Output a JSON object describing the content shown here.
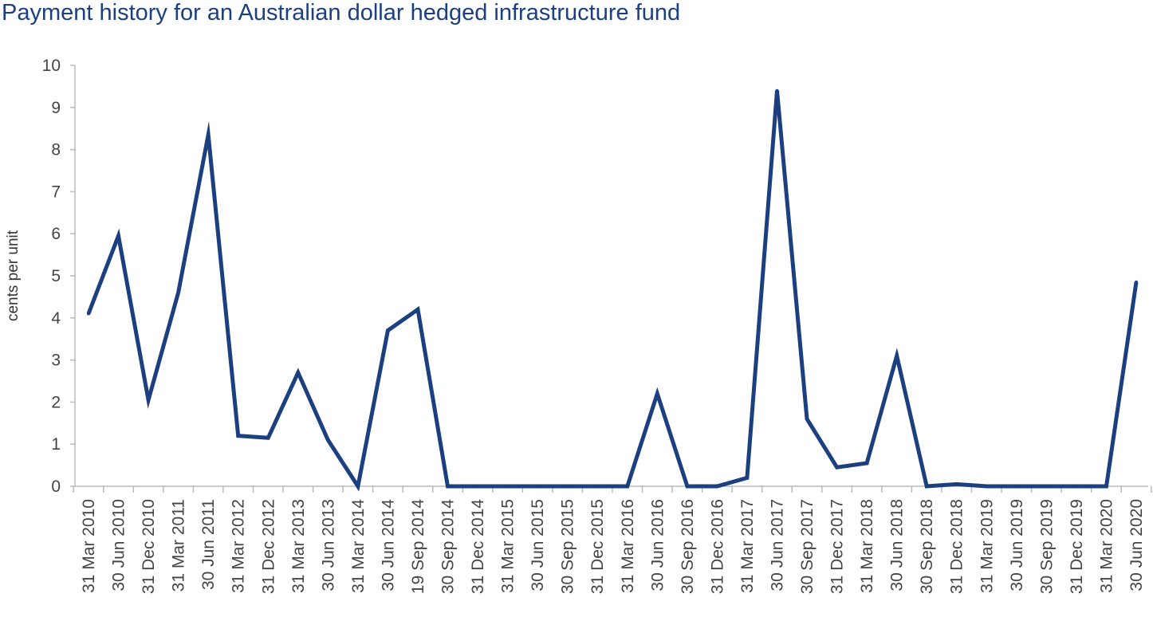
{
  "chart_data": {
    "type": "line",
    "title": "Payment history for an Australian dollar hedged infrastructure fund",
    "xlabel": "",
    "ylabel": "cents per unit",
    "ylim": [
      0,
      10
    ],
    "yticks": [
      "0",
      "1",
      "2",
      "3",
      "4",
      "5",
      "6",
      "7",
      "8",
      "9",
      "10"
    ],
    "grid": false,
    "line_color": "#1b3f7f",
    "categories": [
      "31 Mar 2010",
      "30 Jun 2010",
      "31 Dec 2010",
      "31 Mar 2011",
      "30 Jun 2011",
      "31 Mar 2012",
      "31 Dec 2012",
      "31 Mar 2013",
      "30 Jun 2013",
      "31 Mar 2014",
      "30 Jun 2014",
      "19 Sep 2014",
      "30 Sep 2014",
      "31 Dec 2014",
      "31 Mar 2015",
      "30 Jun 2015",
      "30 Sep 2015",
      "31 Dec 2015",
      "31 Mar 2016",
      "30 Jun 2016",
      "30 Sep 2016",
      "31 Dec 2016",
      "31 Mar 2017",
      "30 Jun 2017",
      "30 Sep 2017",
      "31 Dec 2017",
      "31 Mar 2018",
      "30 Jun 2018",
      "30 Sep 2018",
      "31 Dec 2018",
      "31 Mar 2019",
      "30 Jun 2019",
      "30 Sep 2019",
      "31 Dec 2019",
      "31 Mar 2020",
      "30 Jun 2020"
    ],
    "series": [
      {
        "values": [
          4.1,
          5.95,
          2.05,
          4.6,
          8.35,
          1.2,
          1.15,
          2.7,
          1.1,
          0,
          3.7,
          4.2,
          0,
          0,
          0,
          0,
          0,
          0,
          0,
          2.2,
          0,
          0,
          0.2,
          9.4,
          1.6,
          0.45,
          0.55,
          3.1,
          0,
          0.05,
          0,
          0,
          0,
          0,
          0,
          4.85
        ]
      }
    ]
  }
}
